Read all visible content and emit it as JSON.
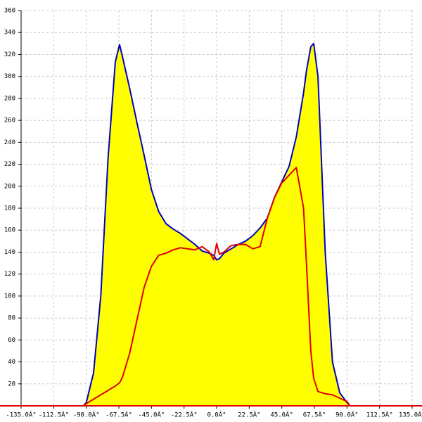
{
  "chart_data": {
    "type": "area",
    "x": [
      -92,
      -90,
      -85,
      -80,
      -75,
      -70,
      -67,
      -65,
      -60,
      -55,
      -50,
      -45,
      -40,
      -35,
      -30,
      -25,
      -20,
      -15,
      -10,
      -5,
      -2,
      0,
      2,
      5,
      10,
      15,
      20,
      25,
      30,
      35,
      40,
      45,
      50,
      55,
      60,
      62,
      65,
      67,
      70,
      75,
      80,
      85,
      90,
      92
    ],
    "series": [
      {
        "color": "#0000c0",
        "fill": "#ffff00",
        "values": [
          0,
          3,
          30,
          100,
          225,
          313,
          329,
          318,
          289,
          258,
          228,
          197,
          177,
          166,
          161,
          157,
          152,
          147,
          141,
          139,
          137,
          133,
          134,
          139,
          143,
          147,
          150,
          155,
          162,
          171,
          190,
          204,
          218,
          245,
          285,
          305,
          327,
          330,
          300,
          140,
          40,
          12,
          3,
          0
        ]
      },
      {
        "color": "#e00000",
        "values": [
          0,
          2,
          6,
          10,
          14,
          18,
          21,
          26,
          48,
          78,
          108,
          127,
          137,
          139,
          142,
          144,
          143,
          142,
          145,
          140,
          133,
          148,
          138,
          140,
          146,
          147,
          147,
          143,
          145,
          171,
          190,
          203,
          210,
          217,
          180,
          130,
          50,
          25,
          13,
          11,
          10,
          7,
          4,
          0
        ]
      }
    ],
    "xlim": [
      -135,
      135
    ],
    "xticks": [
      {
        "value": -135,
        "label": "-135.0Â°"
      },
      {
        "value": -112.5,
        "label": "-112.5Â°"
      },
      {
        "value": -90,
        "label": "-90.0Â°"
      },
      {
        "value": -67.5,
        "label": "-67.5Â°"
      },
      {
        "value": -45,
        "label": "-45.0Â°"
      },
      {
        "value": -22.5,
        "label": "-22.5Â°"
      },
      {
        "value": 0,
        "label": "0.0Â°"
      },
      {
        "value": 22.5,
        "label": "22.5Â°"
      },
      {
        "value": 45,
        "label": "45.0Â°"
      },
      {
        "value": 67.5,
        "label": "67.5Â°"
      },
      {
        "value": 90,
        "label": "90.0Â°"
      },
      {
        "value": 112.5,
        "label": "112.5Â°"
      },
      {
        "value": 135,
        "label": "135.0Â°"
      }
    ],
    "ylim": [
      0,
      360
    ],
    "yticks": [
      20,
      40,
      60,
      80,
      100,
      120,
      140,
      160,
      180,
      200,
      220,
      240,
      260,
      280,
      300,
      320,
      340,
      360
    ],
    "grid": true
  }
}
